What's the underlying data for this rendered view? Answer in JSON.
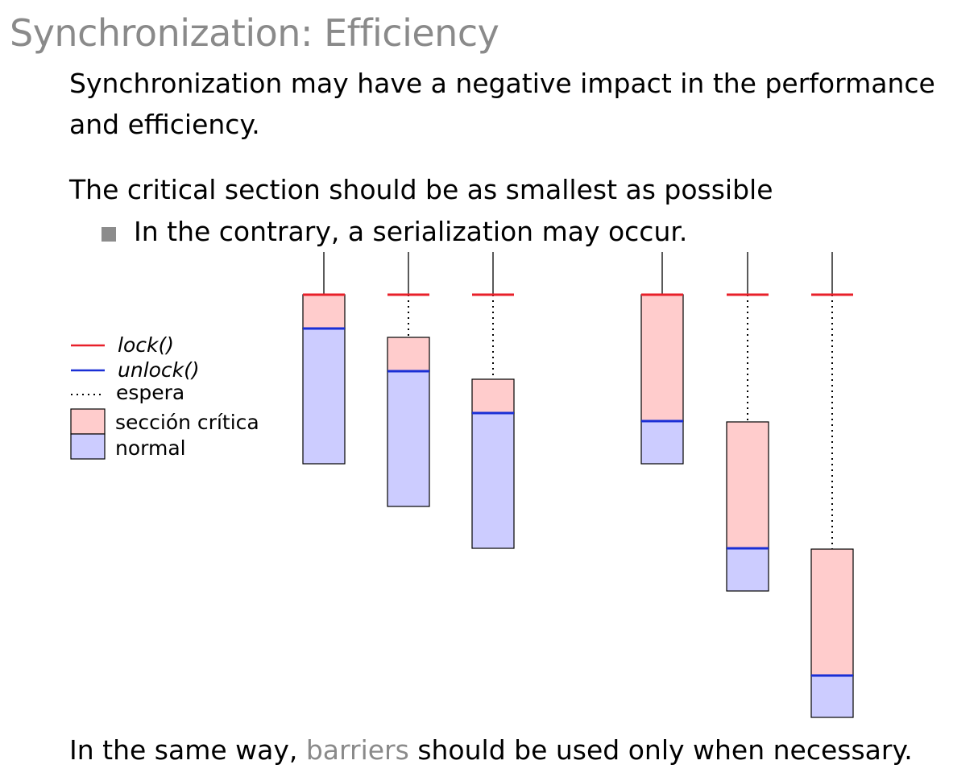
{
  "title": "Synchronization: Efficiency",
  "paragraph1": {
    "line1": "Synchronization may have a negative impact in the performance",
    "line2": "and efficiency."
  },
  "paragraph2": "The critical section should be as smallest as possible",
  "bullet1": "In the contrary, a serialization may occur.",
  "paragraph3": {
    "before": "In the same way, ",
    "highlight": "barriers",
    "after": " should be used only when necessary."
  },
  "legend": {
    "lock": "lock()",
    "unlock": "unlock()",
    "wait": "espera",
    "critical": "sección crítica",
    "normal": "normal"
  },
  "colors": {
    "lock": "#e8202a",
    "unlock": "#1a2fd6",
    "critical_fill": "#ffcccc",
    "normal_fill": "#ccccff",
    "title": "#8a8a8a"
  }
}
